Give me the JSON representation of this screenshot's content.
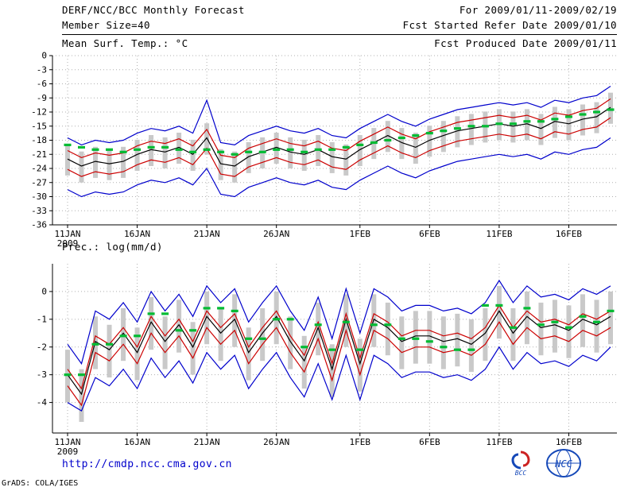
{
  "header": {
    "title": "DERF/NCC/BCC Monthly Forecast",
    "member_size": "Member Size=40",
    "for_range": "For 2009/01/11-2009/02/19",
    "fcst_started": "Fcst Started Refer Date 2009/01/10",
    "fcst_produced": "Fcst Produced Date 2009/01/11"
  },
  "footer": {
    "url": "http://cmdp.ncc.cma.gov.cn",
    "credit": "GrADS: COLA/IGES",
    "bcc_label": "BCC",
    "ncc_label": "NCC"
  },
  "colors": {
    "max_min_line": "#0000cc",
    "quartile_line": "#cc0000",
    "mean_line": "#000000",
    "obs_dash": "#00bb33",
    "spread_bar": "#c9c9c9",
    "grid": "#b0b0b0",
    "url_text": "#0000cc"
  },
  "chart_data": [
    {
      "type": "line",
      "title": "Mean Surf. Temp.: °C",
      "ylabel": "°C",
      "ylim": [
        -36,
        0
      ],
      "yticks": [
        0,
        -3,
        -6,
        -9,
        -12,
        -15,
        -18,
        -21,
        -24,
        -27,
        -30,
        -33,
        -36
      ],
      "x": {
        "n_days": 40,
        "tick_days": [
          0,
          5,
          10,
          15,
          21,
          26,
          31,
          36
        ],
        "tick_labels": [
          "11JAN",
          "16JAN",
          "21JAN",
          "26JAN",
          "1FEB",
          "6FEB",
          "11FEB",
          "16FEB"
        ],
        "sub_label": "2009"
      },
      "series": [
        {
          "name": "ensemble-spread",
          "type": "bar",
          "color": "#c9c9c9",
          "high": [
            -18.9,
            -20.4,
            -19.4,
            -19.9,
            -19.4,
            -17.9,
            -16.9,
            -17.4,
            -16.4,
            -17.9,
            -14.4,
            -19.9,
            -20.4,
            -18.4,
            -17.4,
            -16.4,
            -17.4,
            -17.9,
            -16.9,
            -18.4,
            -18.9,
            -16.9,
            -15.4,
            -13.9,
            -15.4,
            -16.4,
            -14.9,
            -13.9,
            -12.9,
            -12.4,
            -11.9,
            -11.4,
            -11.9,
            -11.4,
            -12.4,
            -10.9,
            -11.4,
            -10.4,
            -9.9,
            -7.9
          ],
          "low": [
            -25.5,
            -27.0,
            -26.0,
            -26.5,
            -26.0,
            -24.5,
            -23.5,
            -24.0,
            -23.0,
            -24.5,
            -21.0,
            -26.5,
            -27.0,
            -25.0,
            -24.0,
            -23.0,
            -24.0,
            -24.5,
            -23.5,
            -25.0,
            -25.5,
            -23.5,
            -22.0,
            -20.5,
            -22.0,
            -23.0,
            -21.5,
            -20.5,
            -19.5,
            -19.0,
            -18.5,
            -18.0,
            -18.5,
            -18.0,
            -19.0,
            -17.5,
            -18.0,
            -17.0,
            -16.5,
            -14.5
          ]
        },
        {
          "name": "ensemble-max",
          "type": "line",
          "color": "#0000cc",
          "values": [
            -17.5,
            -19.0,
            -18.0,
            -18.5,
            -18.0,
            -16.5,
            -15.5,
            -16.0,
            -15.0,
            -16.5,
            -9.5,
            -18.5,
            -19.0,
            -17.0,
            -16.0,
            -15.0,
            -16.0,
            -16.5,
            -15.5,
            -17.0,
            -17.5,
            -15.5,
            -14.0,
            -12.5,
            -14.0,
            -15.0,
            -13.5,
            -12.5,
            -11.5,
            -11.0,
            -10.5,
            -10.0,
            -10.5,
            -10.0,
            -11.0,
            -9.5,
            -10.0,
            -9.0,
            -8.5,
            -6.5
          ]
        },
        {
          "name": "ensemble-min",
          "type": "line",
          "color": "#0000cc",
          "values": [
            -28.5,
            -30.0,
            -29.0,
            -29.5,
            -29.0,
            -27.5,
            -26.5,
            -27.0,
            -26.0,
            -27.5,
            -24.0,
            -29.5,
            -30.0,
            -28.0,
            -27.0,
            -26.0,
            -27.0,
            -27.5,
            -26.5,
            -28.0,
            -28.5,
            -26.5,
            -25.0,
            -23.5,
            -25.0,
            -26.0,
            -24.5,
            -23.5,
            -22.5,
            -22.0,
            -21.5,
            -21.0,
            -21.5,
            -21.0,
            -22.0,
            -20.5,
            -21.0,
            -20.0,
            -19.5,
            -17.5
          ]
        },
        {
          "name": "upper-quartile",
          "type": "line",
          "color": "#cc0000",
          "values": [
            -20.2,
            -21.7,
            -20.7,
            -21.2,
            -20.7,
            -19.2,
            -18.2,
            -18.7,
            -17.7,
            -19.2,
            -15.7,
            -21.2,
            -21.7,
            -19.7,
            -18.7,
            -17.7,
            -18.7,
            -19.2,
            -18.2,
            -19.7,
            -20.2,
            -18.2,
            -16.7,
            -15.2,
            -16.7,
            -17.7,
            -16.2,
            -15.2,
            -14.2,
            -13.7,
            -13.2,
            -12.7,
            -13.2,
            -12.7,
            -13.7,
            -12.2,
            -12.7,
            -11.7,
            -11.2,
            -9.2
          ]
        },
        {
          "name": "lower-quartile",
          "type": "line",
          "color": "#cc0000",
          "values": [
            -24.2,
            -25.7,
            -24.7,
            -25.2,
            -24.7,
            -23.2,
            -22.2,
            -22.7,
            -21.7,
            -23.2,
            -19.7,
            -25.2,
            -25.7,
            -23.7,
            -22.7,
            -21.7,
            -22.7,
            -23.2,
            -22.2,
            -23.7,
            -24.2,
            -22.2,
            -20.7,
            -19.2,
            -20.7,
            -21.7,
            -20.2,
            -19.2,
            -18.2,
            -17.7,
            -17.2,
            -16.7,
            -17.2,
            -16.7,
            -17.7,
            -16.2,
            -16.7,
            -15.7,
            -15.2,
            -13.2
          ]
        },
        {
          "name": "ensemble-mean",
          "type": "line",
          "color": "#000000",
          "values": [
            -22.0,
            -23.5,
            -22.5,
            -23.0,
            -22.5,
            -21.0,
            -20.0,
            -20.5,
            -19.5,
            -21.0,
            -17.5,
            -23.0,
            -23.5,
            -21.5,
            -20.5,
            -19.5,
            -20.5,
            -21.0,
            -20.0,
            -21.5,
            -22.0,
            -20.0,
            -18.5,
            -17.0,
            -18.5,
            -19.5,
            -18.0,
            -17.0,
            -16.0,
            -15.5,
            -15.0,
            -14.5,
            -15.0,
            -14.5,
            -15.5,
            -14.0,
            -14.5,
            -13.5,
            -13.0,
            -11.0
          ]
        },
        {
          "name": "obs-dash",
          "type": "dash",
          "color": "#00bb33",
          "values": [
            -19.0,
            -19.5,
            -20.0,
            -20.0,
            -20.5,
            -20.0,
            -19.5,
            -19.5,
            -20.0,
            -20.5,
            -20.0,
            -20.5,
            -21.0,
            -20.5,
            -20.5,
            -20.0,
            -20.0,
            -20.5,
            -20.0,
            -20.0,
            -19.5,
            -19.0,
            -18.5,
            -18.0,
            -17.5,
            -17.0,
            -16.5,
            -16.0,
            -15.5,
            -15.0,
            -15.0,
            -14.5,
            -14.5,
            -14.0,
            -14.0,
            -13.5,
            -13.0,
            -12.5,
            -12.0,
            -11.5
          ]
        }
      ]
    },
    {
      "type": "line",
      "title": "Prec.: log(mm/d)",
      "ylabel": "log(mm/d)",
      "ylim": [
        -5.1,
        1.0
      ],
      "yticks": [
        0,
        -1,
        -2,
        -3,
        -4
      ],
      "x": {
        "n_days": 40,
        "tick_days": [
          0,
          5,
          10,
          15,
          21,
          26,
          31,
          36
        ],
        "tick_labels": [
          "11JAN",
          "16JAN",
          "21JAN",
          "26JAN",
          "1FEB",
          "6FEB",
          "11FEB",
          "16FEB"
        ],
        "sub_label": "2009"
      },
      "series": [
        {
          "name": "ensemble-spread",
          "type": "bar",
          "color": "#c9c9c9",
          "high": [
            -2.1,
            -2.8,
            -0.9,
            -1.2,
            -0.6,
            -1.3,
            -0.2,
            -0.9,
            -0.3,
            -1.1,
            0.0,
            -0.6,
            -0.1,
            -1.3,
            -0.6,
            0.0,
            -0.9,
            -1.6,
            -0.4,
            -1.9,
            -0.1,
            -1.7,
            -0.1,
            -0.4,
            -0.9,
            -0.7,
            -0.7,
            -0.9,
            -0.8,
            -1.0,
            -0.6,
            0.2,
            -0.6,
            0.0,
            -0.4,
            -0.3,
            -0.5,
            -0.1,
            -0.3,
            0.0
          ],
          "low": [
            -4.0,
            -4.7,
            -2.8,
            -3.1,
            -2.5,
            -3.2,
            -2.1,
            -2.8,
            -2.2,
            -3.0,
            -1.9,
            -2.5,
            -2.0,
            -3.2,
            -2.5,
            -1.9,
            -2.8,
            -3.5,
            -2.3,
            -3.8,
            -2.0,
            -3.6,
            -2.0,
            -2.3,
            -2.8,
            -2.6,
            -2.6,
            -2.8,
            -2.7,
            -2.9,
            -2.5,
            -1.7,
            -2.5,
            -1.9,
            -2.3,
            -2.2,
            -2.4,
            -2.0,
            -2.2,
            -1.9
          ]
        },
        {
          "name": "ensemble-max",
          "type": "line",
          "color": "#0000cc",
          "values": [
            -1.9,
            -2.6,
            -0.7,
            -1.0,
            -0.4,
            -1.1,
            0.0,
            -0.7,
            -0.1,
            -0.9,
            0.2,
            -0.4,
            0.1,
            -1.1,
            -0.4,
            0.2,
            -0.7,
            -1.4,
            -0.2,
            -1.7,
            0.1,
            -1.5,
            0.1,
            -0.2,
            -0.7,
            -0.5,
            -0.5,
            -0.7,
            -0.6,
            -0.8,
            -0.4,
            0.4,
            -0.4,
            0.2,
            -0.2,
            -0.1,
            -0.3,
            0.1,
            -0.1,
            0.2
          ]
        },
        {
          "name": "ensemble-min",
          "type": "line",
          "color": "#0000cc",
          "values": [
            -4.0,
            -4.3,
            -3.1,
            -3.4,
            -2.8,
            -3.5,
            -2.4,
            -3.1,
            -2.5,
            -3.3,
            -2.2,
            -2.8,
            -2.3,
            -3.5,
            -2.8,
            -2.2,
            -3.1,
            -3.8,
            -2.6,
            -3.9,
            -2.3,
            -3.9,
            -2.3,
            -2.6,
            -3.1,
            -2.9,
            -2.9,
            -3.1,
            -3.0,
            -3.2,
            -2.8,
            -2.0,
            -2.8,
            -2.2,
            -2.6,
            -2.5,
            -2.7,
            -2.3,
            -2.5,
            -2.0
          ]
        },
        {
          "name": "upper-quartile",
          "type": "line",
          "color": "#cc0000",
          "values": [
            -2.8,
            -3.5,
            -1.6,
            -1.9,
            -1.3,
            -2.0,
            -0.9,
            -1.6,
            -1.0,
            -1.8,
            -0.7,
            -1.3,
            -0.8,
            -2.0,
            -1.3,
            -0.7,
            -1.6,
            -2.3,
            -1.1,
            -2.6,
            -0.8,
            -2.4,
            -0.8,
            -1.1,
            -1.6,
            -1.4,
            -1.4,
            -1.6,
            -1.5,
            -1.7,
            -1.3,
            -0.5,
            -1.3,
            -0.7,
            -1.1,
            -1.0,
            -1.2,
            -0.8,
            -1.0,
            -0.7
          ]
        },
        {
          "name": "lower-quartile",
          "type": "line",
          "color": "#cc0000",
          "values": [
            -3.4,
            -4.1,
            -2.2,
            -2.5,
            -1.9,
            -2.6,
            -1.5,
            -2.2,
            -1.6,
            -2.4,
            -1.3,
            -1.9,
            -1.4,
            -2.6,
            -1.9,
            -1.3,
            -2.2,
            -2.9,
            -1.7,
            -3.2,
            -1.4,
            -3.0,
            -1.4,
            -1.7,
            -2.2,
            -2.0,
            -2.0,
            -2.2,
            -2.1,
            -2.3,
            -1.9,
            -1.1,
            -1.9,
            -1.3,
            -1.7,
            -1.6,
            -1.8,
            -1.4,
            -1.6,
            -1.3
          ]
        },
        {
          "name": "ensemble-mean",
          "type": "line",
          "color": "#000000",
          "values": [
            -3.0,
            -3.7,
            -1.8,
            -2.1,
            -1.5,
            -2.2,
            -1.1,
            -1.8,
            -1.2,
            -2.0,
            -0.9,
            -1.5,
            -1.0,
            -2.2,
            -1.5,
            -0.9,
            -1.8,
            -2.5,
            -1.3,
            -2.8,
            -1.0,
            -2.6,
            -1.0,
            -1.3,
            -1.8,
            -1.6,
            -1.6,
            -1.8,
            -1.7,
            -1.9,
            -1.5,
            -0.7,
            -1.5,
            -0.9,
            -1.3,
            -1.2,
            -1.4,
            -1.0,
            -1.2,
            -0.9
          ]
        },
        {
          "name": "obs-dash",
          "type": "dash",
          "color": "#00bb33",
          "values": [
            -3.0,
            -3.0,
            -1.9,
            -1.9,
            -1.6,
            -1.6,
            -0.8,
            -0.8,
            -1.4,
            -1.4,
            -0.6,
            -0.6,
            -0.7,
            -1.7,
            -1.7,
            -1.0,
            -1.0,
            -2.0,
            -1.2,
            -2.1,
            -1.1,
            -2.1,
            -1.2,
            -1.2,
            -1.7,
            -1.7,
            -1.8,
            -2.0,
            -2.1,
            -2.1,
            -0.5,
            -0.5,
            -1.3,
            -0.6,
            -1.2,
            -1.1,
            -1.3,
            -0.9,
            -1.1,
            -0.7
          ]
        }
      ]
    }
  ]
}
